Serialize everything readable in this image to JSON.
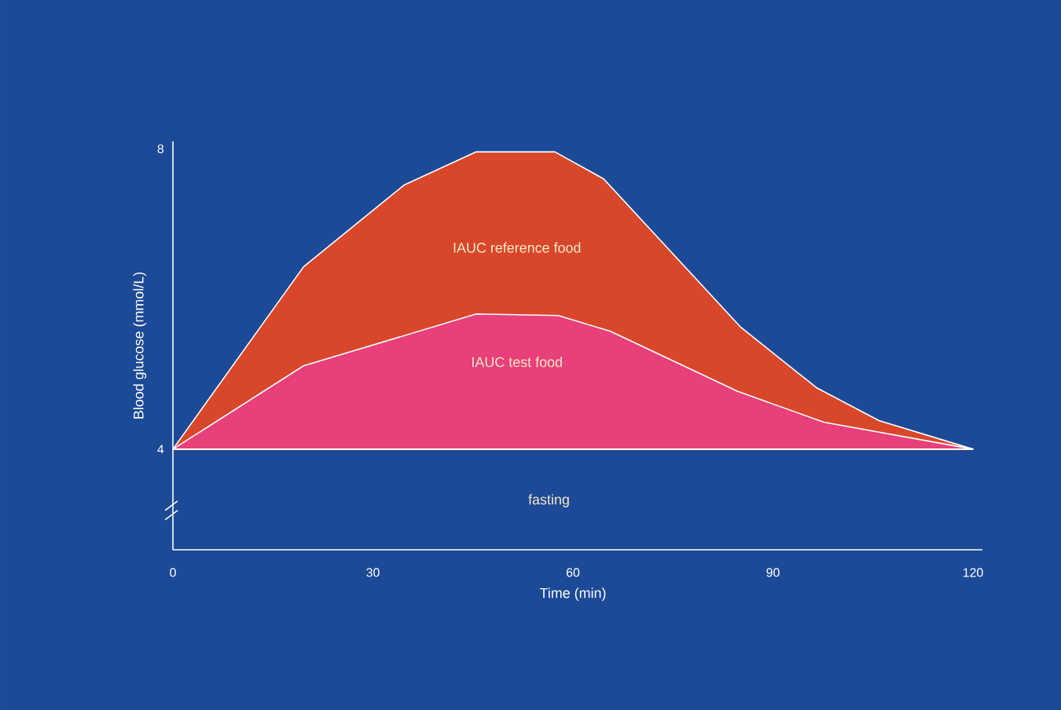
{
  "chart_data": {
    "type": "area",
    "xlabel": "Time (min)",
    "ylabel": "Blood glucose (mmol/L)",
    "xlim": [
      0,
      120
    ],
    "ylim": [
      2.66,
      8.1
    ],
    "xticks": [
      0,
      30,
      60,
      90,
      120
    ],
    "yticks": [
      4,
      8
    ],
    "series": [
      {
        "color": "#d9472b",
        "x": [
          0,
          19.6,
          34.7,
          45.5,
          57.3,
          64.6,
          85.1,
          96.5,
          105.9,
          120
        ],
        "values": [
          4,
          6.43,
          7.52,
          7.96,
          7.96,
          7.6,
          5.63,
          4.82,
          4.38,
          4
        ]
      },
      {
        "color": "#e8407a",
        "x": [
          0,
          19.6,
          45.5,
          57.8,
          65.6,
          84.7,
          97.6,
          120
        ],
        "values": [
          4,
          5.11,
          5.8,
          5.78,
          5.57,
          4.77,
          4.36,
          4
        ]
      }
    ],
    "ref_lines": [
      {
        "axis": "y",
        "value": 4,
        "line_style": "dotted",
        "color": "#ffffff"
      }
    ],
    "annotations": [
      "IAUC reference food",
      "IAUC test food",
      "fasting"
    ]
  }
}
